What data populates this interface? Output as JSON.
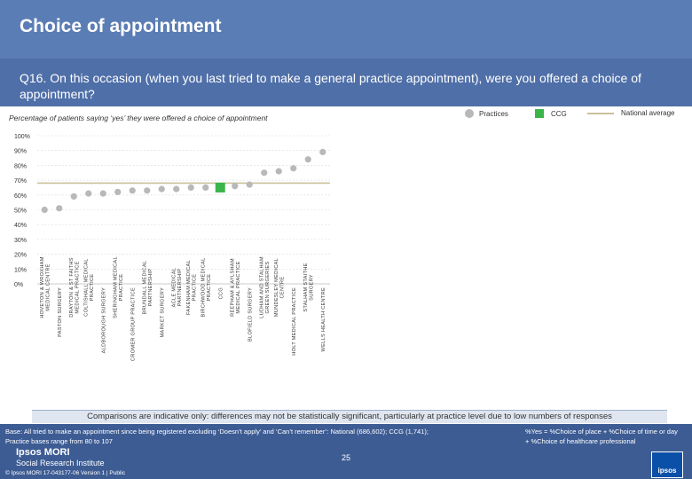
{
  "header": {
    "title": "Choice of appointment",
    "question": "Q16. On this occasion (when you last tried to make a general practice appointment), were you offered a choice of appointment?"
  },
  "caption": "Percentage of patients saying ‘yes’ they were offered a choice of appointment",
  "legend": {
    "practices": "Practices",
    "ccg": "CCG",
    "national": "National average"
  },
  "colors": {
    "practice_marker": "#b8b8b8",
    "ccg_marker": "#3bb54a",
    "national_line": "#c9c29a",
    "header_bg": "#5b7db5",
    "footer_bg": "#3d5c94"
  },
  "chart_data": {
    "type": "scatter",
    "title": "Percentage of patients saying ‘yes’ they were offered a choice of appointment",
    "ylim": [
      0,
      100
    ],
    "y_ticks": [
      "0%",
      "10%",
      "20%",
      "30%",
      "40%",
      "50%",
      "60%",
      "70%",
      "80%",
      "90%",
      "100%"
    ],
    "national_average": 68,
    "categories": [
      "HOVETON & WROXHAM MEDICAL CENTRE",
      "PASTON SURGERY",
      "DRAYTON & ST FAITHS MEDICAL PRACTICE",
      "COLTISHALL MEDICAL PRACTICE",
      "ALDBOROUGH SURGERY",
      "SHERINGHAM MEDICAL PRACTICE",
      "CROMER GROUP PRACTICE",
      "BRUNDALL MEDICAL PARTNERSHIP",
      "MARKET SURGERY",
      "ACLE MEDICAL PARTNERSHIP",
      "FAKENHAM MEDICAL PRACTICE",
      "BIRCHWOOD MEDICAL PRACTICE",
      "CCG",
      "REEPHAM & AYLSHAM MEDICAL PRACTICE",
      "BLOFIELD SURGERY",
      "LUDHAM AND STALHAM GREEN SURGERIES",
      "MUNDESLEY MEDICAL CENTRE",
      "HOLT MEDICAL PRACTICE",
      "STALHAM STAITHE SURGERY",
      "WELLS HEALTH CENTRE"
    ],
    "values": [
      50,
      51,
      59,
      61,
      61,
      62,
      63,
      63,
      64,
      64,
      65,
      65,
      65,
      66,
      67,
      75,
      76,
      78,
      84,
      89
    ],
    "ccg_index": 12
  },
  "footer": {
    "note": "Comparisons are indicative only: differences may not be statistically significant, particularly at practice level due to low numbers of responses",
    "base_line1": "Base: All tried to make an appointment since being registered excluding ‘Doesn’t apply’ and ‘Can’t remember’: National (686,602); CCG (1,741);",
    "base_line2": "Practice bases range from 80 to 107",
    "definition_line1": "%Yes = %Choice of place + %Choice of time or day",
    "definition_line2": "+ %Choice of healthcare professional",
    "logo_name": "Ipsos MORI",
    "logo_sub": "Social Research Institute",
    "copyright": "© Ipsos MORI    17-043177-06 Version 1 | Public",
    "page_number": "25",
    "badge_text": "ipsos"
  }
}
